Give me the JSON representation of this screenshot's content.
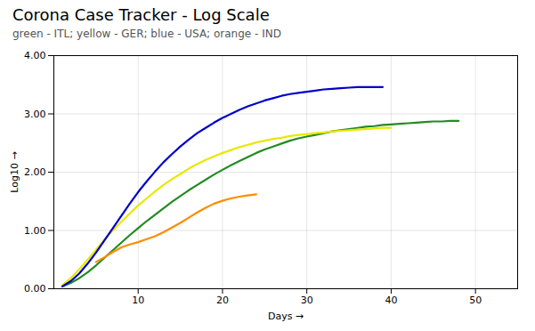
{
  "chart_data": {
    "type": "line",
    "title": "Corona Case Tracker - Log Scale",
    "subtitle": "green - ITL; yellow - GER; blue - USA; orange - IND",
    "xlabel": "Days",
    "ylabel": "Log10",
    "x": [
      1,
      2,
      3,
      4,
      5,
      6,
      7,
      8,
      9,
      10,
      11,
      12,
      13,
      14,
      15,
      16,
      17,
      18,
      19,
      20,
      21,
      22,
      23,
      24,
      25,
      26,
      27,
      28,
      29,
      30,
      31,
      32,
      33,
      34,
      35,
      36,
      37,
      38,
      39,
      40,
      41,
      42,
      43,
      44,
      45,
      46,
      47,
      48
    ],
    "series": [
      {
        "name": "ITL",
        "color": "#228B22",
        "values": [
          0.04,
          0.1,
          0.18,
          0.28,
          0.4,
          0.53,
          0.66,
          0.79,
          0.92,
          1.04,
          1.16,
          1.27,
          1.38,
          1.49,
          1.59,
          1.69,
          1.78,
          1.87,
          1.96,
          2.04,
          2.12,
          2.19,
          2.26,
          2.33,
          2.39,
          2.44,
          2.49,
          2.54,
          2.58,
          2.61,
          2.64,
          2.67,
          2.7,
          2.72,
          2.74,
          2.76,
          2.78,
          2.79,
          2.81,
          2.82,
          2.83,
          2.84,
          2.85,
          2.86,
          2.87,
          2.87,
          2.88,
          2.88
        ]
      },
      {
        "name": "GER",
        "color": "#e8e800",
        "values": [
          0.06,
          0.18,
          0.33,
          0.5,
          0.67,
          0.84,
          1.0,
          1.15,
          1.29,
          1.43,
          1.55,
          1.67,
          1.78,
          1.88,
          1.97,
          2.06,
          2.14,
          2.21,
          2.27,
          2.33,
          2.38,
          2.43,
          2.47,
          2.51,
          2.54,
          2.57,
          2.59,
          2.62,
          2.64,
          2.65,
          2.67,
          2.68,
          2.7,
          2.71,
          2.72,
          2.73,
          2.74,
          2.75,
          2.76,
          2.76,
          null,
          null,
          null,
          null,
          null,
          null,
          null,
          null
        ]
      },
      {
        "name": "USA",
        "color": "#0000cc",
        "values": [
          0.04,
          0.13,
          0.26,
          0.43,
          0.62,
          0.83,
          1.04,
          1.25,
          1.46,
          1.66,
          1.84,
          2.01,
          2.17,
          2.31,
          2.44,
          2.56,
          2.67,
          2.76,
          2.85,
          2.93,
          3.0,
          3.07,
          3.13,
          3.18,
          3.23,
          3.27,
          3.31,
          3.34,
          3.36,
          3.38,
          3.4,
          3.42,
          3.43,
          3.44,
          3.45,
          3.46,
          3.46,
          3.46,
          3.46,
          null,
          null,
          null,
          null,
          null,
          null,
          null,
          null,
          null
        ]
      },
      {
        "name": "IND",
        "color": "#ff8c00",
        "values": [
          null,
          null,
          null,
          null,
          0.46,
          0.54,
          0.63,
          0.71,
          0.76,
          0.8,
          0.85,
          0.9,
          0.97,
          1.05,
          1.13,
          1.22,
          1.31,
          1.39,
          1.46,
          1.51,
          1.55,
          1.58,
          1.6,
          1.62,
          null,
          null,
          null,
          null,
          null,
          null,
          null,
          null,
          null,
          null,
          null,
          null,
          null,
          null,
          null,
          null,
          null,
          null,
          null,
          null,
          null,
          null,
          null,
          null
        ]
      }
    ],
    "xlim": [
      0,
      55
    ],
    "ylim": [
      0.0,
      4.0
    ],
    "xticks": [
      10,
      20,
      30,
      40,
      50
    ],
    "yticks": [
      {
        "value": 0.0,
        "label": "0.00"
      },
      {
        "value": 1.0,
        "label": "1.00"
      },
      {
        "value": 2.0,
        "label": "2.00"
      },
      {
        "value": 3.0,
        "label": "3.00"
      },
      {
        "value": 4.0,
        "label": "4.00"
      }
    ],
    "grid": true
  }
}
